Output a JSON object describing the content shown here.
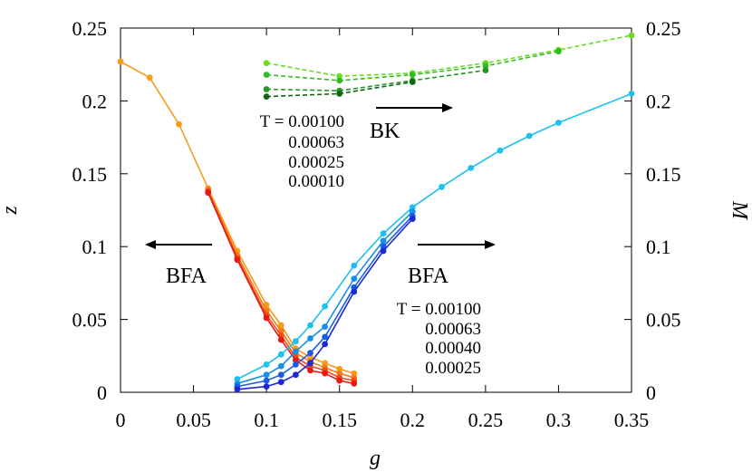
{
  "chart_data": {
    "type": "line",
    "xlabel": "g",
    "ylabel_left": "z",
    "ylabel_right": "M",
    "xlim": [
      0,
      0.35
    ],
    "ylim_left": [
      0,
      0.25
    ],
    "ylim_right": [
      0,
      0.25
    ],
    "x_ticks": [
      "0",
      "0.05",
      "0.1",
      "0.15",
      "0.2",
      "0.25",
      "0.3",
      "0.35"
    ],
    "y_left_ticks": [
      "0",
      "0.05",
      "0.1",
      "0.15",
      "0.2",
      "0.25"
    ],
    "y_right_ticks": [
      "0",
      "0.05",
      "0.1",
      "0.15",
      "0.2",
      "0.25"
    ],
    "grid": false,
    "annotations": {
      "bk": "BK",
      "bfa_left": "BFA",
      "bfa_right": "BFA",
      "bk_temps": [
        "T = 0.00100",
        "0.00063",
        "0.00025",
        "0.00010"
      ],
      "bfa_temps": [
        "T = 0.00100",
        "0.00063",
        "0.00040",
        "0.00025"
      ]
    },
    "series": [
      {
        "group": "z",
        "axis": "left",
        "style": "solid",
        "color": "#f59c1a",
        "x": [
          0,
          0.02,
          0.04,
          0.06,
          0.08,
          0.1,
          0.11,
          0.12,
          0.13,
          0.14,
          0.15,
          0.16
        ],
        "values": [
          0.227,
          0.216,
          0.184,
          0.14,
          0.097,
          0.06,
          0.046,
          0.03,
          0.024,
          0.02,
          0.016,
          0.013
        ]
      },
      {
        "group": "z",
        "axis": "left",
        "style": "solid",
        "color": "#f47a18",
        "x": [
          0.06,
          0.08,
          0.1,
          0.11,
          0.12,
          0.13,
          0.14,
          0.15,
          0.16
        ],
        "values": [
          0.139,
          0.094,
          0.056,
          0.042,
          0.027,
          0.021,
          0.017,
          0.013,
          0.01
        ]
      },
      {
        "group": "z",
        "axis": "left",
        "style": "solid",
        "color": "#ef4c16",
        "x": [
          0.06,
          0.08,
          0.1,
          0.11,
          0.12,
          0.13,
          0.14,
          0.15,
          0.16
        ],
        "values": [
          0.138,
          0.092,
          0.053,
          0.039,
          0.024,
          0.018,
          0.015,
          0.01,
          0.008
        ]
      },
      {
        "group": "z",
        "axis": "left",
        "style": "solid",
        "color": "#e41a14",
        "x": [
          0.06,
          0.08,
          0.1,
          0.11,
          0.12,
          0.13,
          0.14,
          0.15,
          0.16
        ],
        "values": [
          0.137,
          0.091,
          0.051,
          0.036,
          0.022,
          0.015,
          0.013,
          0.008,
          0.006
        ]
      },
      {
        "group": "M_bfa",
        "axis": "right",
        "style": "solid",
        "color": "#1ec0ee",
        "x": [
          0.08,
          0.1,
          0.11,
          0.12,
          0.13,
          0.14,
          0.16,
          0.18,
          0.2,
          0.22,
          0.24,
          0.26,
          0.28,
          0.3,
          0.35
        ],
        "values": [
          0.009,
          0.019,
          0.026,
          0.035,
          0.046,
          0.059,
          0.087,
          0.109,
          0.127,
          0.141,
          0.154,
          0.166,
          0.176,
          0.185,
          0.205
        ]
      },
      {
        "group": "M_bfa",
        "axis": "right",
        "style": "solid",
        "color": "#1a8ee6",
        "x": [
          0.08,
          0.1,
          0.11,
          0.12,
          0.13,
          0.14,
          0.16,
          0.18,
          0.2
        ],
        "values": [
          0.006,
          0.012,
          0.018,
          0.028,
          0.037,
          0.045,
          0.078,
          0.104,
          0.124
        ]
      },
      {
        "group": "M_bfa",
        "axis": "right",
        "style": "solid",
        "color": "#1a5ce0",
        "x": [
          0.08,
          0.1,
          0.11,
          0.12,
          0.13,
          0.14,
          0.16,
          0.18,
          0.2
        ],
        "values": [
          0.004,
          0.008,
          0.012,
          0.019,
          0.027,
          0.038,
          0.072,
          0.1,
          0.121
        ]
      },
      {
        "group": "M_bfa",
        "axis": "right",
        "style": "solid",
        "color": "#1a2ad6",
        "x": [
          0.08,
          0.1,
          0.11,
          0.12,
          0.13,
          0.14,
          0.16,
          0.18,
          0.2
        ],
        "values": [
          0.002,
          0.004,
          0.007,
          0.012,
          0.02,
          0.033,
          0.069,
          0.097,
          0.119
        ]
      },
      {
        "group": "M_bk",
        "axis": "right",
        "style": "dashed",
        "color": "#66dd22",
        "x": [
          0.1,
          0.15,
          0.2,
          0.25,
          0.3,
          0.35
        ],
        "values": [
          0.226,
          0.217,
          0.219,
          0.226,
          0.235,
          0.245
        ]
      },
      {
        "group": "M_bk",
        "axis": "right",
        "style": "dashed",
        "color": "#33bb22",
        "x": [
          0.1,
          0.15,
          0.2,
          0.25,
          0.3
        ],
        "values": [
          0.218,
          0.214,
          0.218,
          0.224,
          0.234
        ]
      },
      {
        "group": "M_bk",
        "axis": "right",
        "style": "dashed",
        "color": "#229922",
        "x": [
          0.1,
          0.15,
          0.2,
          0.25
        ],
        "values": [
          0.208,
          0.207,
          0.214,
          0.221
        ]
      },
      {
        "group": "M_bk",
        "axis": "right",
        "style": "dashed",
        "color": "#116611",
        "x": [
          0.1,
          0.15,
          0.2
        ],
        "values": [
          0.203,
          0.205,
          0.213
        ]
      }
    ]
  }
}
